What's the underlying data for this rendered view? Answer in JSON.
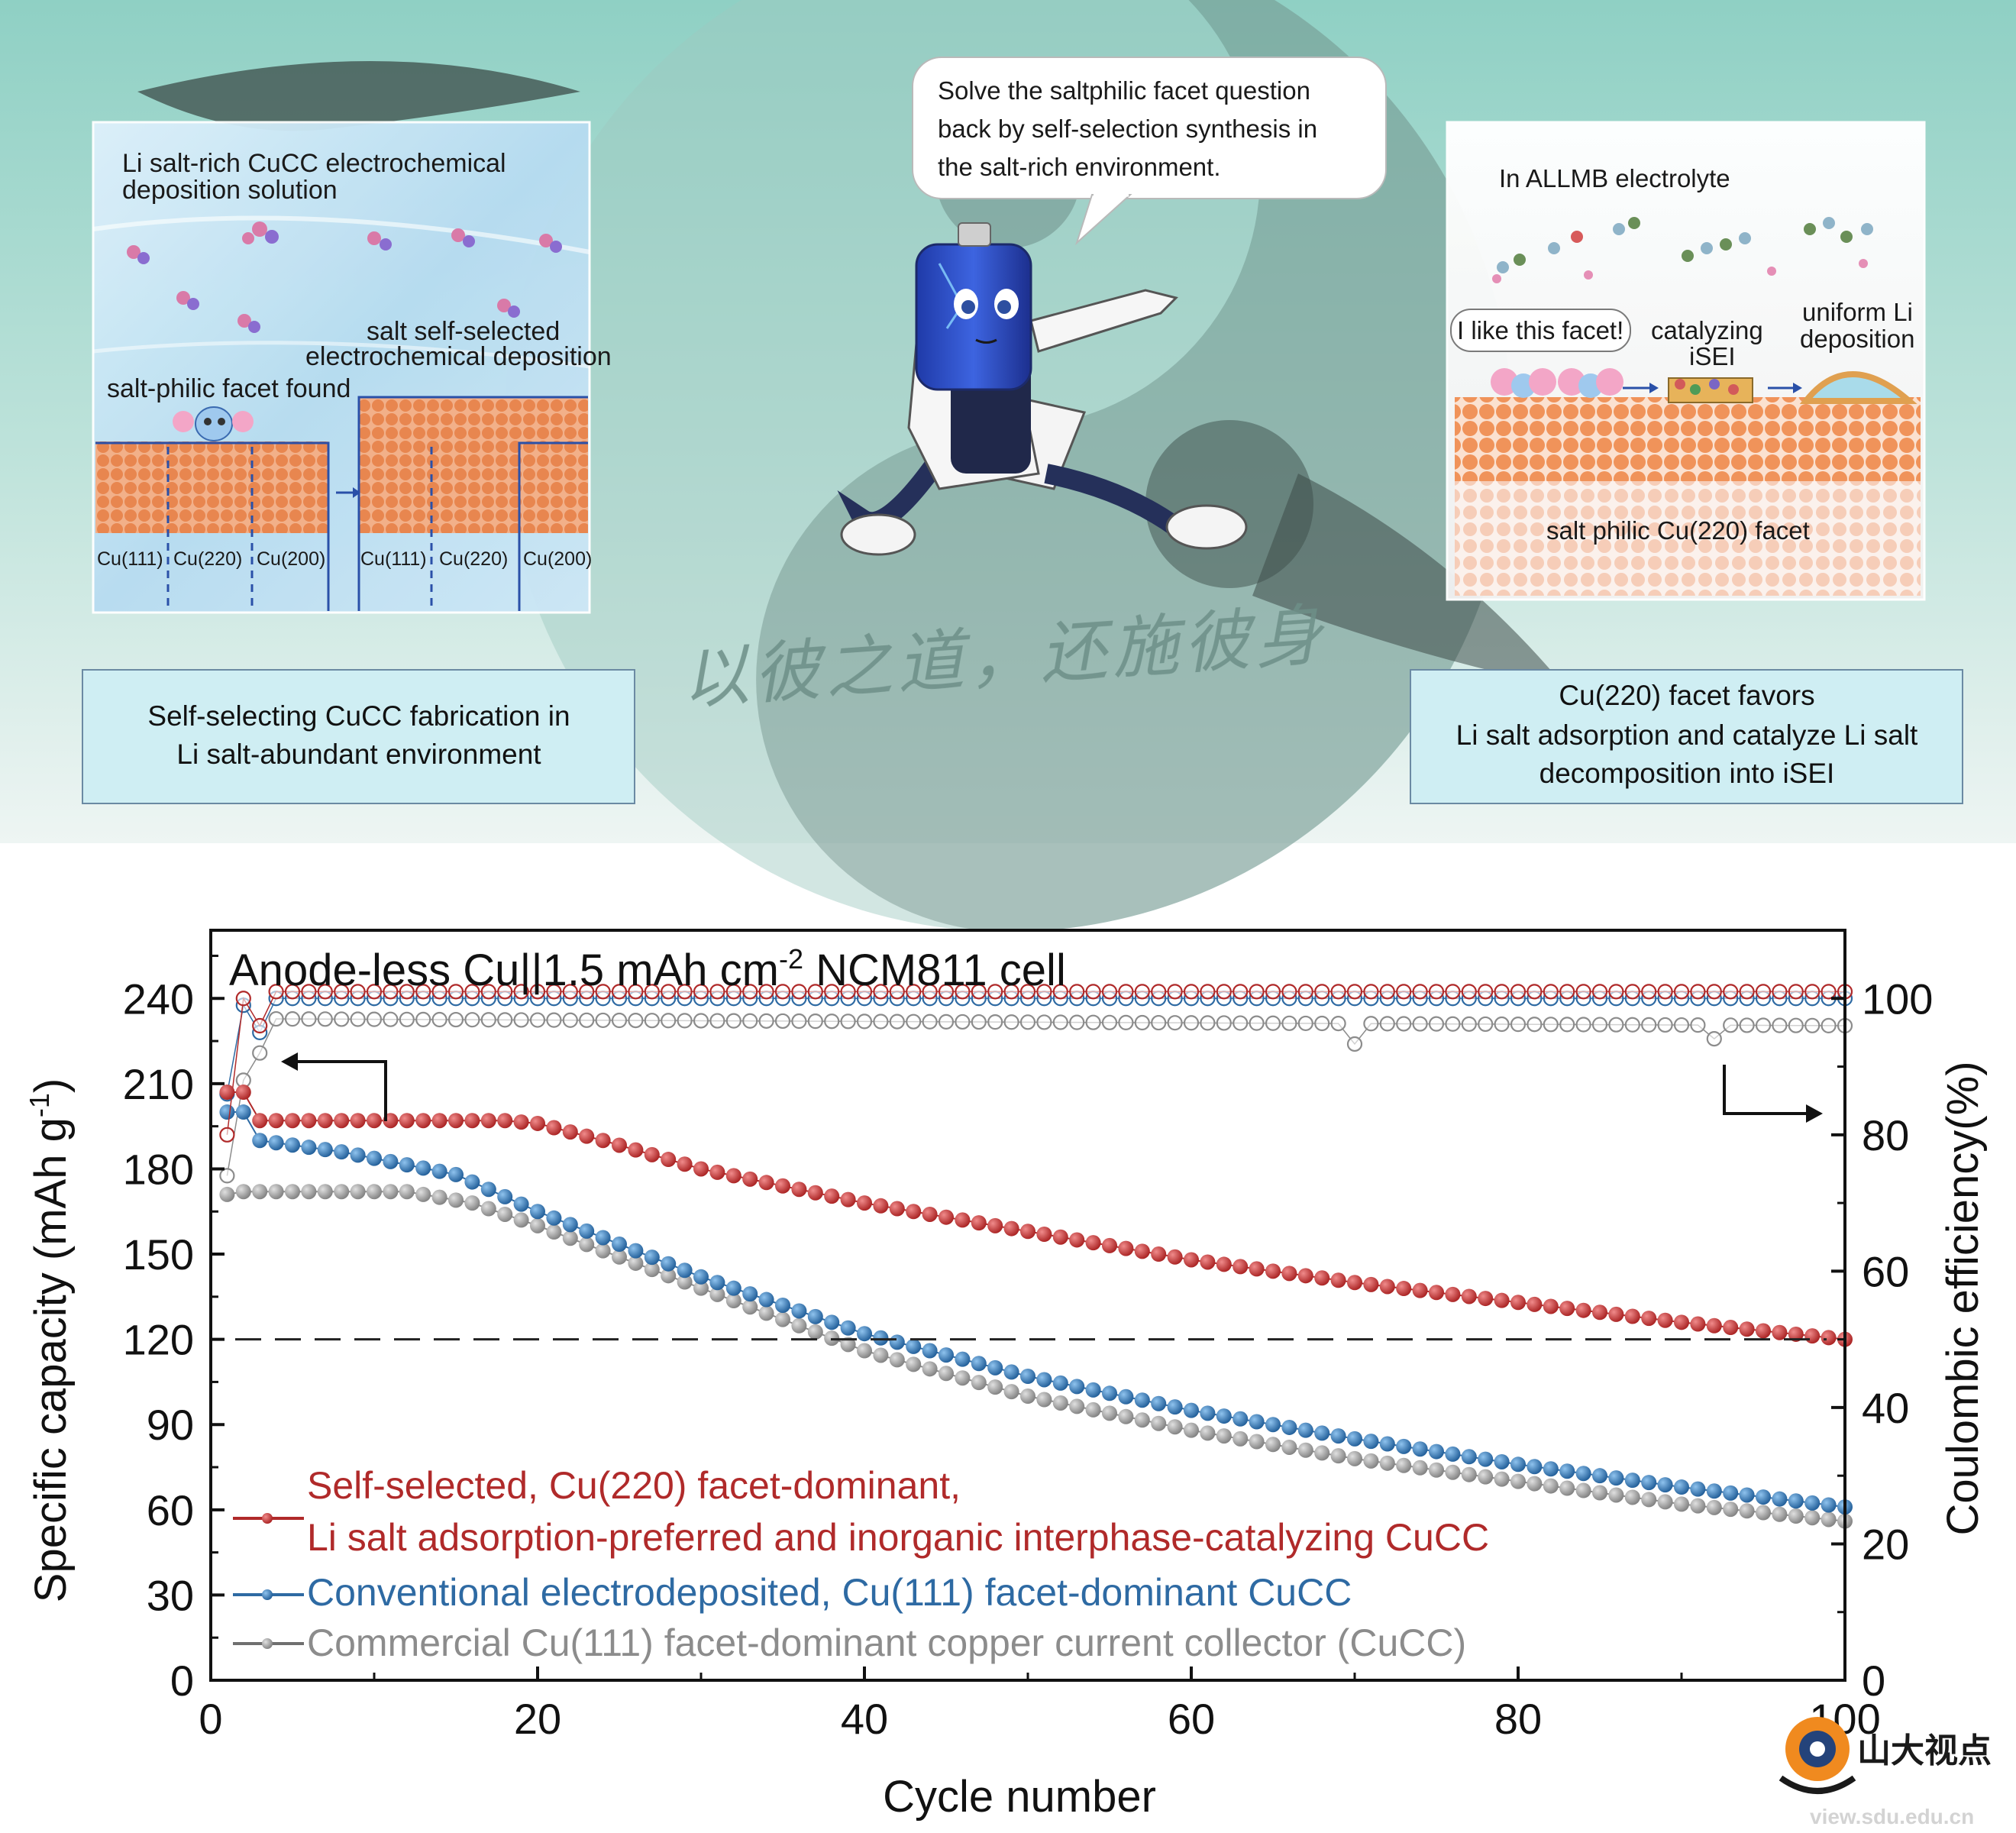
{
  "banner": {
    "speech": [
      "Solve the saltphilic facet question",
      "back by self-selection synthesis in",
      "the salt-rich environment."
    ],
    "left_panel": {
      "title_lines": [
        "Li salt-rich CuCC electrochemical",
        "deposition solution"
      ],
      "self_selected_lines": [
        "salt self-selected",
        "electrochemical deposition"
      ],
      "found_label": "salt-philic facet found",
      "facet_labels_a": [
        "Cu(111)",
        "Cu(220)",
        "Cu(200)"
      ],
      "facet_labels_b": [
        "Cu(111)",
        "Cu(220)",
        "Cu(200)"
      ]
    },
    "right_panel": {
      "title": "In ALLMB electrolyte",
      "bubble": "I like this facet!",
      "catalyzing_lines": [
        "catalyzing",
        "iSEI"
      ],
      "uniform_lines": [
        "uniform Li",
        "deposition"
      ],
      "facet_label": "salt philic Cu(220) facet"
    },
    "calligraphy": "以彼之道，还施彼身",
    "left_box_lines": [
      "Self-selecting CuCC fabrication in",
      "Li salt-abundant environment"
    ],
    "right_box_lines": [
      "Cu(220) facet favors",
      "Li salt adsorption and catalyze Li salt",
      "decomposition into iSEI"
    ],
    "watermark_main": "山大视点",
    "watermark_url": "view.sdu.edu.cn"
  },
  "chart_data": {
    "type": "scatter",
    "title_parts": {
      "prefix": "Anode-less Cu||1.5 mAh cm",
      "sup": "-2",
      "suffix": " NCM811 cell"
    },
    "xlabel": "Cycle number",
    "ylabel_left_parts": {
      "prefix": "Specific capacity (mAh g",
      "sup": "-1",
      "suffix": ")"
    },
    "ylabel_right": "Coulombic efficiency(%)",
    "xlim": [
      0,
      100
    ],
    "ylim_left": [
      0,
      264
    ],
    "ylim_right": [
      0,
      110
    ],
    "x_ticks": [
      0,
      20,
      40,
      60,
      80,
      100
    ],
    "y_ticks_left": [
      0,
      30,
      60,
      90,
      120,
      150,
      180,
      210,
      240
    ],
    "y_ticks_right": [
      0,
      20,
      40,
      60,
      80,
      100
    ],
    "reference_line_capacity": 120,
    "legend": [
      {
        "lines": [
          "Self-selected, Cu(220) facet-dominant,",
          "Li salt adsorption-preferred and inorganic interphase-catalyzing CuCC"
        ],
        "color": "#b02a2a"
      },
      {
        "lines": [
          "Conventional electrodeposited, Cu(111) facet-dominant CuCC"
        ],
        "color": "#2e6aa3"
      },
      {
        "lines": [
          "Commercial Cu(111) facet-dominant copper current collector (CuCC)"
        ],
        "color": "#8c8c8c"
      }
    ],
    "series": [
      {
        "color": "#b02a2a",
        "capacity_anchors": [
          [
            1,
            207
          ],
          [
            2,
            207
          ],
          [
            3,
            197
          ],
          [
            18,
            197
          ],
          [
            20,
            196
          ],
          [
            24,
            190
          ],
          [
            30,
            180
          ],
          [
            40,
            168
          ],
          [
            50,
            158
          ],
          [
            60,
            148
          ],
          [
            70,
            140
          ],
          [
            80,
            133
          ],
          [
            90,
            126
          ],
          [
            100,
            120
          ]
        ],
        "ce_anchors": [
          [
            1,
            80
          ],
          [
            2,
            100
          ],
          [
            3,
            96
          ],
          [
            4,
            101
          ],
          [
            100,
            101
          ]
        ]
      },
      {
        "color": "#2e6aa3",
        "capacity_anchors": [
          [
            1,
            200
          ],
          [
            2,
            200
          ],
          [
            3,
            190
          ],
          [
            8,
            186
          ],
          [
            15,
            178
          ],
          [
            20,
            165
          ],
          [
            30,
            142
          ],
          [
            40,
            122
          ],
          [
            50,
            107
          ],
          [
            60,
            95
          ],
          [
            70,
            85
          ],
          [
            80,
            76
          ],
          [
            90,
            68
          ],
          [
            100,
            61
          ]
        ],
        "ce_anchors": [
          [
            1,
            86
          ],
          [
            2,
            99
          ],
          [
            3,
            95
          ],
          [
            4,
            100
          ],
          [
            100,
            100
          ]
        ]
      },
      {
        "color": "#8c8c8c",
        "capacity_anchors": [
          [
            1,
            171
          ],
          [
            2,
            172
          ],
          [
            3,
            172
          ],
          [
            12,
            172
          ],
          [
            16,
            168
          ],
          [
            20,
            160
          ],
          [
            30,
            138
          ],
          [
            40,
            116
          ],
          [
            50,
            100
          ],
          [
            60,
            88
          ],
          [
            70,
            78
          ],
          [
            80,
            70
          ],
          [
            90,
            62
          ],
          [
            100,
            56
          ]
        ],
        "ce_anchors": [
          [
            1,
            74
          ],
          [
            2,
            88
          ],
          [
            3,
            92
          ],
          [
            4,
            97
          ],
          [
            100,
            96
          ]
        ]
      }
    ]
  }
}
